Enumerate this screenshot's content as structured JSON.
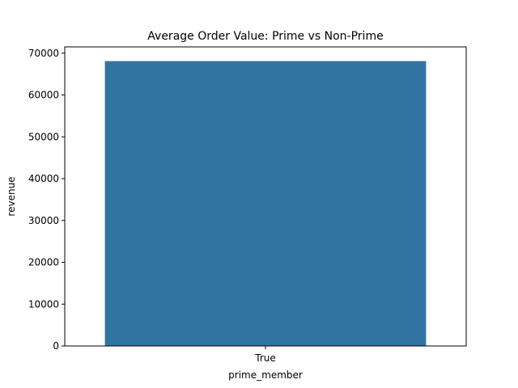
{
  "chart_data": {
    "type": "bar",
    "title": "Average Order Value: Prime vs Non-Prime",
    "xlabel": "prime_member",
    "ylabel": "revenue",
    "categories": [
      "True"
    ],
    "values": [
      68100
    ],
    "ylim": [
      0,
      71500
    ],
    "yticks": [
      0,
      10000,
      20000,
      30000,
      40000,
      50000,
      60000,
      70000
    ],
    "ytick_labels": [
      "0",
      "10000",
      "20000",
      "30000",
      "40000",
      "50000",
      "60000",
      "70000"
    ],
    "grid": false,
    "legend": "none",
    "colors": {
      "bar": "#3274a1",
      "axis": "#000000",
      "background": "#ffffff"
    }
  }
}
